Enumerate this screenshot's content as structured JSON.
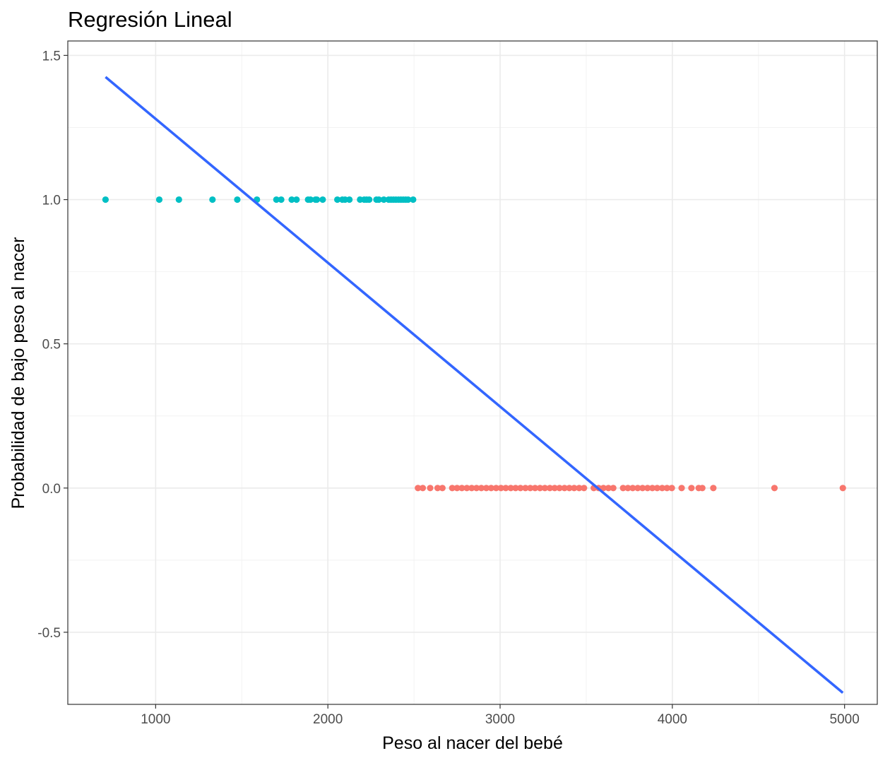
{
  "chart_data": {
    "type": "scatter",
    "title": "Regresión Lineal",
    "xlabel": "Peso al nacer del bebé",
    "ylabel": "Probabilidad de bajo peso al nacer",
    "xlim": [
      490,
      5190
    ],
    "ylim": [
      -0.75,
      1.55
    ],
    "x_ticks": [
      1000,
      2000,
      3000,
      4000,
      5000
    ],
    "y_ticks": [
      -0.5,
      0.0,
      0.5,
      1.0,
      1.5
    ],
    "y_tick_labels": [
      "-0.5",
      "0.0",
      "0.5",
      "1.0",
      "1.5"
    ],
    "grid": true,
    "legend": "none",
    "series": [
      {
        "color": "#00BFC4",
        "y": 1,
        "x": [
          709,
          1021,
          1135,
          1330,
          1474,
          1588,
          1701,
          1729,
          1790,
          1818,
          1885,
          1899,
          1928,
          1936,
          1970,
          2055,
          2084,
          2100,
          2125,
          2187,
          2211,
          2225,
          2240,
          2282,
          2296,
          2325,
          2353,
          2367,
          2381,
          2395,
          2410,
          2424,
          2438,
          2452,
          2466,
          2495
        ]
      },
      {
        "color": "#F8766D",
        "y": 0,
        "x": [
          2523,
          2551,
          2594,
          2637,
          2665,
          2722,
          2750,
          2778,
          2807,
          2835,
          2863,
          2891,
          2920,
          2948,
          2977,
          3005,
          3033,
          3062,
          3090,
          3118,
          3147,
          3175,
          3203,
          3232,
          3260,
          3289,
          3317,
          3345,
          3374,
          3402,
          3430,
          3459,
          3487,
          3544,
          3572,
          3600,
          3629,
          3657,
          3714,
          3742,
          3770,
          3799,
          3827,
          3856,
          3884,
          3912,
          3941,
          3969,
          3997,
          4054,
          4111,
          4153,
          4174,
          4238,
          4593,
          4990
        ]
      }
    ],
    "fit_line": {
      "color": "#3366FF",
      "x": [
        709,
        4990
      ],
      "y": [
        1.425,
        -0.71
      ]
    }
  }
}
